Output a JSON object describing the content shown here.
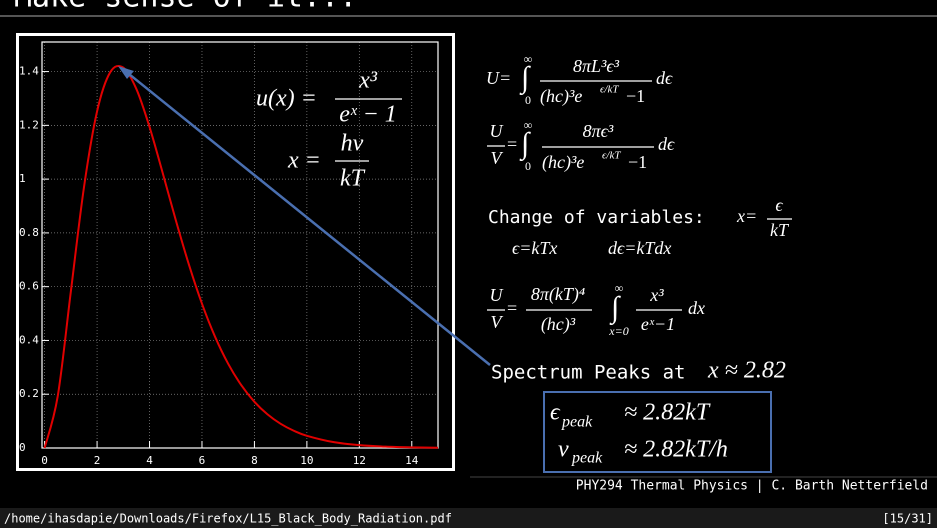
{
  "slide": {
    "title": "Make sense of it...",
    "eq1": {
      "lhs": "U=",
      "int": "∫",
      "upper": "∞",
      "lower": "0",
      "num": "8πL³ϵ³",
      "den": "(hc)³e",
      "exp": "ϵ/kT",
      "den_tail": "−1",
      "tail": "dϵ"
    },
    "eq2": {
      "lhs_num": "U",
      "lhs_den": "V",
      "eq": "=",
      "int": "∫",
      "upper": "∞",
      "lower": "0",
      "num": "8πϵ³",
      "den": "(hc)³e",
      "exp": "ϵ/kT",
      "den_tail": "−1",
      "tail": "dϵ"
    },
    "change": {
      "label": "Change of variables:",
      "lhs": "x=",
      "num": "ϵ",
      "den": "kT",
      "rel1": "ϵ=kTx",
      "rel2": "dϵ=kTdx"
    },
    "eq3": {
      "lhs_num": "U",
      "lhs_den": "V",
      "eq": "=",
      "num": "8π(kT)⁴",
      "den": "(hc)³",
      "int": "∫",
      "upper": "∞",
      "lower": "x=0",
      "inum": "x³",
      "iden": "eˣ−1",
      "tail": "dx"
    },
    "peak": {
      "label": "Spectrum Peaks at",
      "value": "x ≈ 2.82"
    },
    "box": {
      "sym1": "ϵ",
      "sub1": "peak",
      "rest1": "≈ 2.82kT",
      "sym2": "ν",
      "sub2": "peak",
      "rest2": "≈ 2.82kT/h"
    },
    "footer": "PHY294 Thermal Physics | C. Barth Netterfield"
  },
  "status": {
    "path": "/home/ihasdapie/Downloads/Firefox/L15_Black_Body_Radiation.pdf",
    "page": "[15/31]"
  },
  "chart_data": {
    "type": "line",
    "formula": {
      "lhs": "u(x) =",
      "num": "x³",
      "den": "eˣ − 1",
      "lhs2": "x =",
      "num2": "hν",
      "den2": "kT"
    },
    "x": [
      0,
      0.5,
      1,
      1.5,
      2,
      2.5,
      3,
      3.5,
      4,
      4.5,
      5,
      5.5,
      6,
      6.5,
      7,
      7.5,
      8,
      8.5,
      9,
      9.5,
      10,
      11,
      12,
      13,
      14,
      15
    ],
    "values": [
      0,
      0.1927,
      0.582,
      0.9694,
      1.2521,
      1.3973,
      1.4147,
      1.335,
      1.1941,
      1.0237,
      0.848,
      0.6827,
      0.5367,
      0.4135,
      0.3131,
      0.2335,
      0.1718,
      0.125,
      0.09,
      0.0642,
      0.0454,
      0.0222,
      0.0106,
      0.00497,
      0.00228,
      0.00103
    ],
    "color": "#e00000",
    "xlim": [
      -0.1,
      15
    ],
    "ylim": [
      0,
      1.51
    ],
    "xticks": [
      0,
      2,
      4,
      6,
      8,
      10,
      12,
      14
    ],
    "yticks": [
      0,
      {
        "value": 0.2,
        "label": "0.2"
      },
      {
        "value": 0.4,
        "label": "0.4"
      },
      {
        "value": 0.6,
        "label": "0.6"
      },
      {
        "value": 0.8,
        "label": "0.8"
      },
      1,
      {
        "value": 1.2,
        "label": "1.2"
      },
      {
        "value": 1.4,
        "label": "1.4"
      }
    ],
    "grid": true
  }
}
